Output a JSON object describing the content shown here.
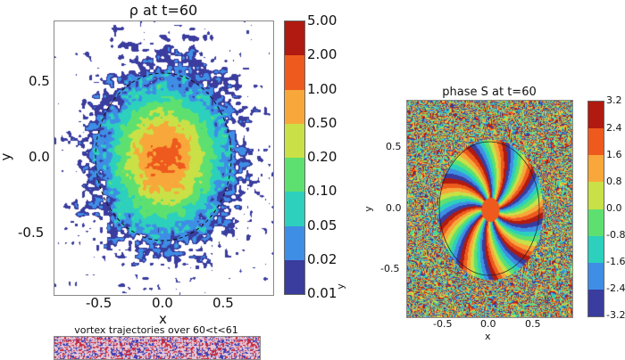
{
  "chart_data": [
    {
      "type": "heatmap",
      "title": "ρ at t=60",
      "xlabel": "x",
      "ylabel": "y",
      "xticks": [
        "-0.5",
        "0.0",
        "0.5"
      ],
      "xtick_values": [
        -0.5,
        0,
        0.5
      ],
      "yticks": [
        "0.5",
        "0.0",
        "-0.5"
      ],
      "ytick_values": [
        0.5,
        0,
        -0.5
      ],
      "xlim": [
        -0.9,
        0.9
      ],
      "ylim": [
        -0.9,
        0.86
      ],
      "colorbar": {
        "levels": [
          "5.00",
          "2.00",
          "1.00",
          "0.50",
          "0.20",
          "0.10",
          "0.05",
          "0.02",
          "0.01"
        ],
        "colors": [
          "#b01a10",
          "#ee5a1e",
          "#f8a73a",
          "#c9e046",
          "#5ee070",
          "#2cd0bc",
          "#3e8ee6",
          "#3a3c9e"
        ]
      },
      "annotation": "dashed circle radius ~0.55"
    },
    {
      "type": "heatmap",
      "title": "phase S at t=60",
      "xlabel": "x",
      "ylabel": "y",
      "xticks": [
        "-0.5",
        "0.0",
        "0.5"
      ],
      "xtick_values": [
        -0.5,
        0,
        0.5
      ],
      "yticks": [
        "0.5",
        "0.0",
        "-0.5"
      ],
      "ytick_values": [
        0.5,
        0,
        -0.5
      ],
      "xlim": [
        -0.92,
        0.93
      ],
      "ylim": [
        -0.9,
        0.9
      ],
      "colorbar": {
        "levels": [
          "3.2",
          "2.4",
          "1.6",
          "0.8",
          "0.0",
          "-0.8",
          "-1.6",
          "-2.4",
          "-3.2"
        ],
        "colors": [
          "#b01a10",
          "#ee5a1e",
          "#f8a73a",
          "#c9e046",
          "#5ee070",
          "#2cd0bc",
          "#3e8ee6",
          "#3a3c9e"
        ]
      }
    },
    {
      "type": "heatmap",
      "title": "vortex trajectories over 60<t<61"
    }
  ],
  "extra_ylabel": "y"
}
